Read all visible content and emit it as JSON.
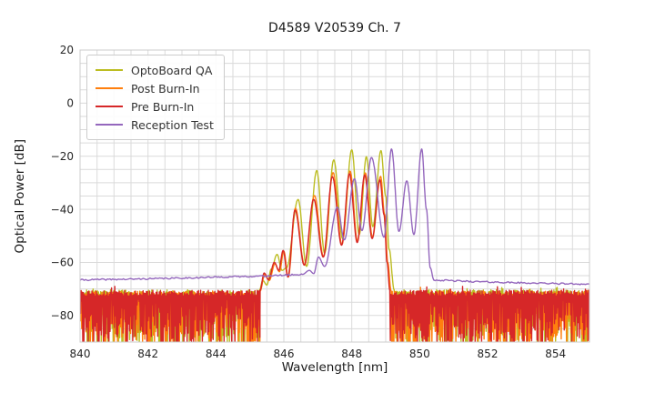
{
  "chart_data": {
    "type": "line",
    "title": "D4589 V20539 Ch. 7",
    "xlabel": "Wavelength [nm]",
    "ylabel": "Optical Power [dB]",
    "xlim": [
      840,
      855
    ],
    "ylim": [
      -90,
      20
    ],
    "xticks": [
      840,
      842,
      844,
      846,
      848,
      850,
      852,
      854
    ],
    "xtick_labels": [
      "840",
      "842",
      "844",
      "846",
      "848",
      "850",
      "852",
      "854"
    ],
    "yticks": [
      20,
      0,
      -20,
      -40,
      -60,
      -80
    ],
    "ytick_labels": [
      "20",
      "0",
      "−20",
      "−40",
      "−60",
      "−80"
    ],
    "minor_grid": {
      "x_step": 0.5,
      "y_step": 5
    },
    "grid": true,
    "grid_color": "#dadada",
    "frame_color": "#cccccc",
    "tick_color": "#262626",
    "legend_position": "upper-left",
    "series": [
      {
        "name": "OptoBoard QA",
        "color": "#bcbd22",
        "segments": [
          {
            "type": "noise",
            "x0": 840.0,
            "x1": 845.28,
            "top": -70.3,
            "top_jitter": 2.2,
            "deep": -79,
            "deep_jitter": 15,
            "seed": 11
          },
          {
            "type": "smooth",
            "points": [
              [
                845.28,
                -70.5
              ],
              [
                845.38,
                -66.8
              ],
              [
                845.5,
                -68.5
              ],
              [
                845.63,
                -62.5
              ],
              [
                845.8,
                -57
              ],
              [
                845.95,
                -63
              ],
              [
                846.08,
                -62
              ],
              [
                846.42,
                -36.3
              ],
              [
                846.67,
                -61.5
              ],
              [
                846.97,
                -25.4
              ],
              [
                847.2,
                -56.5
              ],
              [
                847.47,
                -21.4
              ],
              [
                847.73,
                -51
              ],
              [
                848.0,
                -17.6
              ],
              [
                848.22,
                -49.5
              ],
              [
                848.43,
                -20.2
              ],
              [
                848.62,
                -46.5
              ],
              [
                848.86,
                -17.9
              ],
              [
                849.0,
                -35
              ],
              [
                849.1,
                -55
              ],
              [
                849.25,
                -70.3
              ]
            ]
          },
          {
            "type": "noise",
            "x0": 849.25,
            "x1": 855.0,
            "top": -70.3,
            "top_jitter": 2.2,
            "deep": -79,
            "deep_jitter": 15,
            "seed": 12
          }
        ]
      },
      {
        "name": "Post Burn-In",
        "color": "#ff7f0e",
        "segments": [
          {
            "type": "noise",
            "x0": 840.0,
            "x1": 845.3,
            "top": -70.8,
            "top_jitter": 2.2,
            "deep": -79,
            "deep_jitter": 15,
            "seed": 21
          },
          {
            "type": "smooth",
            "points": [
              [
                845.3,
                -70.8
              ],
              [
                845.44,
                -64.5
              ],
              [
                845.57,
                -66.8
              ],
              [
                845.74,
                -60.5
              ],
              [
                845.87,
                -63.5
              ],
              [
                846.0,
                -55.8
              ],
              [
                846.13,
                -65.5
              ],
              [
                846.34,
                -39.6
              ],
              [
                846.61,
                -61
              ],
              [
                846.9,
                -34.8
              ],
              [
                847.17,
                -57.8
              ],
              [
                847.45,
                -26.2
              ],
              [
                847.71,
                -53.2
              ],
              [
                847.95,
                -25.6
              ],
              [
                848.17,
                -52
              ],
              [
                848.4,
                -26.3
              ],
              [
                848.61,
                -50.5
              ],
              [
                848.85,
                -27.6
              ],
              [
                848.97,
                -42
              ],
              [
                849.06,
                -60
              ],
              [
                849.16,
                -70.8
              ]
            ]
          },
          {
            "type": "noise",
            "x0": 849.16,
            "x1": 855.0,
            "top": -70.8,
            "top_jitter": 2.2,
            "deep": -79,
            "deep_jitter": 15,
            "seed": 22
          }
        ]
      },
      {
        "name": "Pre Burn-In",
        "color": "#d62728",
        "segments": [
          {
            "type": "noise",
            "x0": 840.0,
            "x1": 845.3,
            "top": -70.5,
            "top_jitter": 2.2,
            "deep": -78.5,
            "deep_jitter": 15,
            "seed": 31
          },
          {
            "type": "smooth",
            "points": [
              [
                845.3,
                -70.5
              ],
              [
                845.42,
                -64
              ],
              [
                845.55,
                -66.5
              ],
              [
                845.72,
                -60
              ],
              [
                845.85,
                -63
              ],
              [
                845.98,
                -55.5
              ],
              [
                846.12,
                -65.5
              ],
              [
                846.33,
                -40.3
              ],
              [
                846.6,
                -61
              ],
              [
                846.88,
                -36.3
              ],
              [
                847.16,
                -58
              ],
              [
                847.43,
                -27.7
              ],
              [
                847.7,
                -53.5
              ],
              [
                847.93,
                -26.6
              ],
              [
                848.16,
                -52.5
              ],
              [
                848.38,
                -27.1
              ],
              [
                848.6,
                -51
              ],
              [
                848.83,
                -28.9
              ],
              [
                848.95,
                -42
              ],
              [
                849.04,
                -60
              ],
              [
                849.12,
                -70.5
              ]
            ]
          },
          {
            "type": "noise",
            "x0": 849.12,
            "x1": 855.0,
            "top": -70.5,
            "top_jitter": 2.2,
            "deep": -78.5,
            "deep_jitter": 15,
            "seed": 32
          }
        ]
      },
      {
        "name": "Reception Test",
        "color": "#9467bd",
        "segments": [
          {
            "type": "flat",
            "jitter": 0.28,
            "seed": 41,
            "points": [
              [
                840,
                -66.6
              ],
              [
                841.5,
                -66.3
              ],
              [
                843,
                -65.9
              ],
              [
                844.5,
                -65.4
              ],
              [
                845.5,
                -65.1
              ],
              [
                846.2,
                -64.7
              ],
              [
                846.55,
                -64.5
              ]
            ]
          },
          {
            "type": "smooth",
            "points": [
              [
                846.55,
                -64.5
              ],
              [
                846.75,
                -63
              ],
              [
                846.88,
                -64.2
              ],
              [
                847.02,
                -58
              ],
              [
                847.2,
                -61.5
              ],
              [
                847.58,
                -39.2
              ],
              [
                847.78,
                -51.5
              ],
              [
                848.08,
                -28.5
              ],
              [
                848.3,
                -48
              ],
              [
                848.58,
                -20.5
              ],
              [
                848.95,
                -50.5
              ],
              [
                849.17,
                -17.3
              ],
              [
                849.39,
                -48.3
              ],
              [
                849.62,
                -29.3
              ],
              [
                849.83,
                -49.5
              ],
              [
                850.06,
                -17.3
              ],
              [
                850.2,
                -40
              ],
              [
                850.31,
                -62
              ],
              [
                850.42,
                -66.6
              ]
            ]
          },
          {
            "type": "flat",
            "jitter": 0.28,
            "seed": 42,
            "points": [
              [
                850.42,
                -66.6
              ],
              [
                851.5,
                -67.2
              ],
              [
                853,
                -67.7
              ],
              [
                855,
                -68.2
              ]
            ]
          }
        ]
      }
    ]
  }
}
